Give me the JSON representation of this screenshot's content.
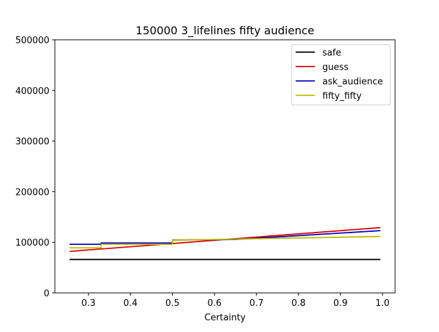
{
  "chart_data": {
    "type": "line",
    "title": "150000 3_lifelines fifty audience",
    "xlabel": "Certainty",
    "ylabel": "",
    "xlim": [
      0.22,
      1.03
    ],
    "ylim": [
      0,
      500000
    ],
    "xticks": [
      "0.3",
      "0.4",
      "0.5",
      "0.6",
      "0.7",
      "0.8",
      "0.9",
      "1.0"
    ],
    "yticks": [
      "0",
      "100000",
      "200000",
      "300000",
      "400000",
      "500000"
    ],
    "grid": false,
    "legend_position": "top-right",
    "series": [
      {
        "name": "safe",
        "color": "#000000",
        "x": [
          0.255,
          0.995
        ],
        "y": [
          66000,
          66000
        ]
      },
      {
        "name": "guess",
        "color": "#dd0000",
        "x": [
          0.255,
          0.995
        ],
        "y": [
          82000,
          129000
        ]
      },
      {
        "name": "ask_audience",
        "color": "#0000bb",
        "x": [
          0.255,
          0.33,
          0.33,
          0.5,
          0.5,
          0.65,
          0.995
        ],
        "y": [
          96000,
          96000,
          98500,
          98500,
          104500,
          105500,
          123000
        ]
      },
      {
        "name": "fifty_fifty",
        "color": "#bbbb00",
        "x": [
          0.255,
          0.33,
          0.33,
          0.5,
          0.5,
          0.6,
          0.995
        ],
        "y": [
          89000,
          89000,
          96000,
          96000,
          104000,
          105500,
          111500
        ]
      }
    ]
  }
}
